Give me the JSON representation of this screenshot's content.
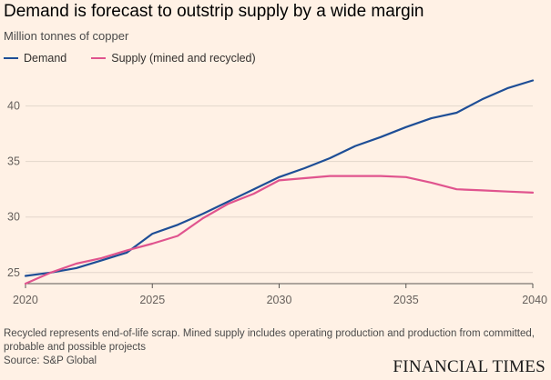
{
  "chart_data": {
    "type": "line",
    "title": "Demand is forecast to outstrip supply by a wide margin",
    "subtitle": "Million tonnes of copper",
    "xlabel": "",
    "ylabel": "Million tonnes of copper",
    "xlim": [
      2020,
      2040
    ],
    "ylim": [
      24,
      43
    ],
    "grid": true,
    "x_ticks": [
      "2020",
      "2025",
      "2030",
      "2035",
      "2040"
    ],
    "y_ticks": [
      "25",
      "30",
      "35",
      "40"
    ],
    "x": [
      2020,
      2021,
      2022,
      2023,
      2024,
      2025,
      2026,
      2027,
      2028,
      2029,
      2030,
      2031,
      2032,
      2033,
      2034,
      2035,
      2036,
      2037,
      2038,
      2039,
      2040
    ],
    "series": [
      {
        "name": "Demand",
        "color": "#1e4e96",
        "values": [
          24.7,
          25.0,
          25.4,
          26.1,
          26.8,
          28.5,
          29.3,
          30.3,
          31.4,
          32.5,
          33.6,
          34.4,
          35.3,
          36.4,
          37.2,
          38.1,
          38.9,
          39.4,
          40.6,
          41.6,
          42.3
        ]
      },
      {
        "name": "Supply (mined and recycled)",
        "color": "#e0548e",
        "values": [
          24.0,
          25.0,
          25.8,
          26.3,
          27.0,
          27.6,
          28.3,
          29.9,
          31.2,
          32.1,
          33.3,
          33.5,
          33.7,
          33.7,
          33.7,
          33.6,
          33.1,
          32.5,
          32.4,
          32.3,
          32.2
        ]
      }
    ],
    "legend_position": "top-left",
    "footnote": "Recycled represents end-of-life scrap. Mined supply includes operating production and production from committed, probable and possible projects",
    "source": "Source: S&P Global"
  },
  "brand": "FINANCIAL TIMES",
  "colors": {
    "background": "#fff1e5",
    "grid": "#e3d6cb",
    "axis": "#5a5653"
  }
}
